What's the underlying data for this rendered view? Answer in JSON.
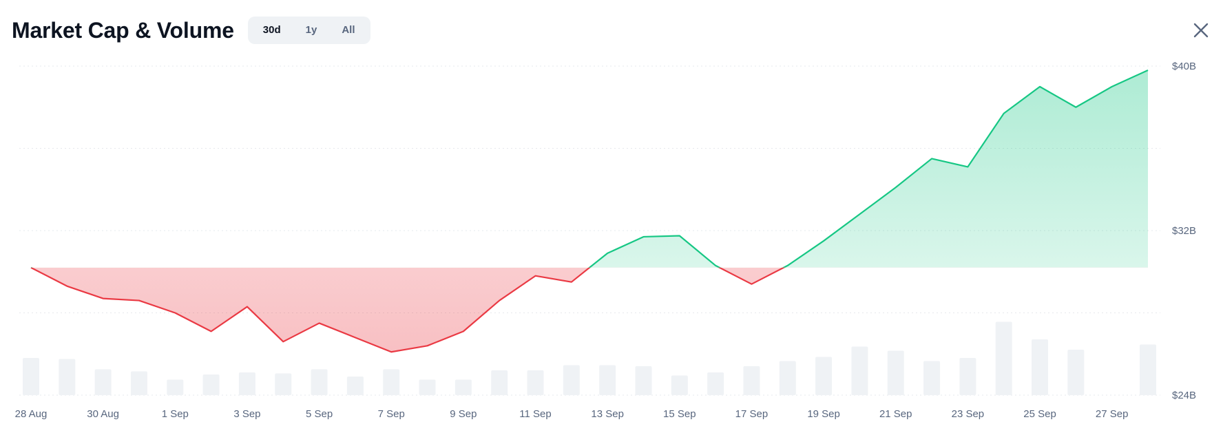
{
  "header": {
    "title": "Market Cap & Volume",
    "ranges": [
      {
        "label": "30d",
        "active": true
      },
      {
        "label": "1y",
        "active": false
      },
      {
        "label": "All",
        "active": false
      }
    ],
    "close_icon": "close-icon"
  },
  "colors": {
    "up": "#16c784",
    "down": "#ea3943",
    "volume": "#eff2f5",
    "grid": "#e6e8ec"
  },
  "chart_data": {
    "type": "area",
    "baseline": 30.2,
    "ylim": [
      24,
      40
    ],
    "y_ticks": [
      {
        "value": 40,
        "label": "$40B"
      },
      {
        "value": 32,
        "label": "$32B"
      },
      {
        "value": 24,
        "label": "$24B"
      }
    ],
    "x_ticks": [
      {
        "index": 0,
        "label": "28 Aug"
      },
      {
        "index": 2,
        "label": "30 Aug"
      },
      {
        "index": 4,
        "label": "1 Sep"
      },
      {
        "index": 6,
        "label": "3 Sep"
      },
      {
        "index": 8,
        "label": "5 Sep"
      },
      {
        "index": 10,
        "label": "7 Sep"
      },
      {
        "index": 12,
        "label": "9 Sep"
      },
      {
        "index": 14,
        "label": "11 Sep"
      },
      {
        "index": 16,
        "label": "13 Sep"
      },
      {
        "index": 18,
        "label": "15 Sep"
      },
      {
        "index": 20,
        "label": "17 Sep"
      },
      {
        "index": 22,
        "label": "19 Sep"
      },
      {
        "index": 24,
        "label": "21 Sep"
      },
      {
        "index": 26,
        "label": "23 Sep"
      },
      {
        "index": 28,
        "label": "25 Sep"
      },
      {
        "index": 30,
        "label": "27 Sep"
      }
    ],
    "market_cap": [
      30.2,
      29.3,
      28.7,
      28.6,
      28.0,
      27.1,
      28.3,
      26.6,
      27.5,
      26.8,
      26.1,
      26.4,
      27.1,
      28.6,
      29.8,
      29.5,
      30.9,
      31.7,
      31.75,
      30.3,
      29.4,
      30.3,
      31.5,
      32.8,
      34.1,
      35.5,
      35.1,
      37.7,
      39.0,
      38.0,
      39.0,
      39.8
    ],
    "volume": [
      1.8,
      1.75,
      1.25,
      1.15,
      0.75,
      1.0,
      1.1,
      1.05,
      1.25,
      0.9,
      1.25,
      0.75,
      0.75,
      1.2,
      1.2,
      1.45,
      1.45,
      1.4,
      0.95,
      1.1,
      1.4,
      1.65,
      1.85,
      2.35,
      2.15,
      1.65,
      1.8,
      3.55,
      2.7,
      2.2,
      null,
      2.45
    ]
  }
}
